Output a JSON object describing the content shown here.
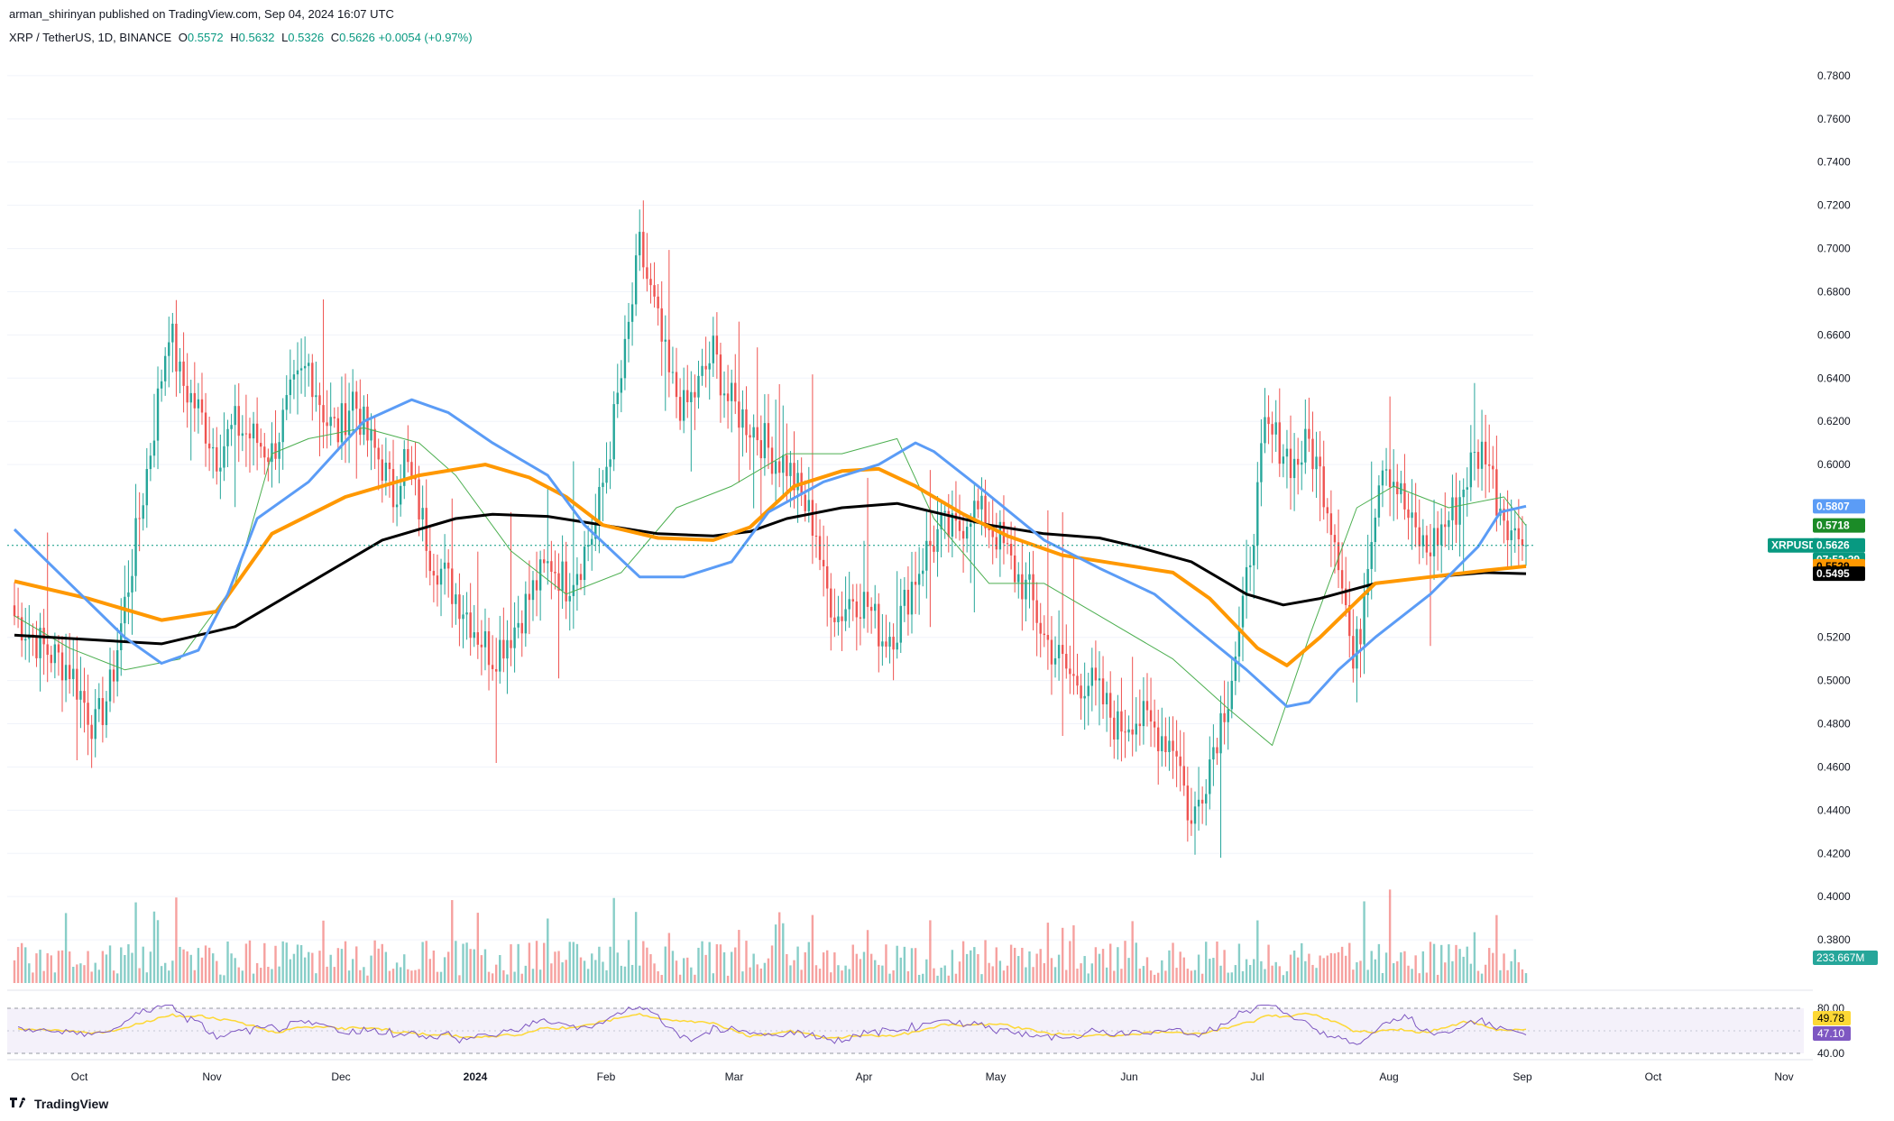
{
  "header": {
    "published_by": "arman_shirinyan published on TradingView.com, Sep 04, 2024 16:07 UTC"
  },
  "legend": {
    "symbol": "XRP / TetherUS, 1D, BINANCE",
    "open_label": "O",
    "open": "0.5572",
    "high_label": "H",
    "high": "0.5632",
    "low_label": "L",
    "low": "0.5326",
    "close_label": "C",
    "close": "0.5626",
    "change": "+0.0054 (+0.97%)"
  },
  "footer": {
    "brand": "TradingView"
  },
  "colors": {
    "up": "#26a69a",
    "down": "#ef5350",
    "ma_black": "#000000",
    "ma_orange": "#ff9800",
    "ma_blue": "#5b9cf6",
    "ma_green": "#4caf50",
    "rsi": "#7e57c2",
    "rsi_ma": "#fdd835",
    "rsi_band": "#ede7f6"
  },
  "chart_data": {
    "type": "candlestick",
    "title": "XRP / TetherUS, 1D, BINANCE",
    "price_axis": {
      "ticks": [
        "0.7800",
        "0.7600",
        "0.7400",
        "0.7200",
        "0.7000",
        "0.6800",
        "0.6600",
        "0.6400",
        "0.6200",
        "0.6000",
        "0.5200",
        "0.5000",
        "0.4800",
        "0.4600",
        "0.4400",
        "0.4200",
        "0.4000",
        "0.3800"
      ],
      "ylim": [
        0.36,
        0.795
      ]
    },
    "time_axis": {
      "labels": [
        "Oct",
        "Nov",
        "Dec",
        "2024",
        "Feb",
        "Mar",
        "Apr",
        "May",
        "Jun",
        "Jul",
        "Aug",
        "Sep",
        "Oct",
        "Nov"
      ]
    },
    "price_tags": [
      {
        "label": "0.5807",
        "value": 0.5807,
        "color": "#5b9cf6",
        "text_color": "#ffffff"
      },
      {
        "label": "0.5718",
        "value": 0.5718,
        "color": "#1b8b27",
        "text_color": "#ffffff"
      },
      {
        "label": "XRPUSDT",
        "value": 0.5626,
        "color": "#089981",
        "text_color": "#ffffff"
      },
      {
        "label": "0.5626",
        "value": 0.5626,
        "color": "#089981",
        "text_color": "#ffffff"
      },
      {
        "label": "07:52:29",
        "value": 0.5626,
        "color": "#089981",
        "text_color": "#ffffff"
      },
      {
        "label": "0.5529",
        "value": 0.5529,
        "color": "#ff9800",
        "text_color": "#000000"
      },
      {
        "label": "0.5495",
        "value": 0.5495,
        "color": "#000000",
        "text_color": "#ffffff"
      }
    ],
    "volume_tag": "233.667M",
    "rsi": {
      "axis_labels": [
        "80.00",
        "40.00"
      ],
      "values": [
        "49.78",
        "47.10"
      ],
      "value_colors": [
        "#fdd835",
        "#7e57c2"
      ]
    },
    "ohlc_path": [
      [
        0,
        0.53
      ],
      [
        8,
        0.515
      ],
      [
        15,
        0.506
      ],
      [
        22,
        0.478
      ],
      [
        26,
        0.496
      ],
      [
        32,
        0.555
      ],
      [
        38,
        0.618
      ],
      [
        42,
        0.665
      ],
      [
        45,
        0.64
      ],
      [
        50,
        0.625
      ],
      [
        55,
        0.605
      ],
      [
        60,
        0.618
      ],
      [
        66,
        0.611
      ],
      [
        70,
        0.605
      ],
      [
        75,
        0.63
      ],
      [
        80,
        0.646
      ],
      [
        85,
        0.62
      ],
      [
        88,
        0.615
      ],
      [
        92,
        0.632
      ],
      [
        96,
        0.612
      ],
      [
        100,
        0.6
      ],
      [
        103,
        0.585
      ],
      [
        106,
        0.603
      ],
      [
        110,
        0.58
      ],
      [
        113,
        0.56
      ],
      [
        118,
        0.545
      ],
      [
        122,
        0.535
      ],
      [
        126,
        0.522
      ],
      [
        130,
        0.512
      ],
      [
        136,
        0.525
      ],
      [
        142,
        0.545
      ],
      [
        146,
        0.555
      ],
      [
        150,
        0.545
      ],
      [
        154,
        0.556
      ],
      [
        158,
        0.572
      ],
      [
        162,
        0.61
      ],
      [
        166,
        0.65
      ],
      [
        170,
        0.7
      ],
      [
        174,
        0.672
      ],
      [
        178,
        0.64
      ],
      [
        182,
        0.625
      ],
      [
        186,
        0.636
      ],
      [
        190,
        0.652
      ],
      [
        194,
        0.63
      ],
      [
        198,
        0.622
      ],
      [
        202,
        0.615
      ],
      [
        206,
        0.605
      ],
      [
        210,
        0.6
      ],
      [
        214,
        0.584
      ],
      [
        218,
        0.57
      ],
      [
        220,
        0.545
      ],
      [
        224,
        0.53
      ],
      [
        228,
        0.54
      ],
      [
        232,
        0.535
      ],
      [
        236,
        0.52
      ],
      [
        240,
        0.525
      ],
      [
        244,
        0.545
      ],
      [
        248,
        0.56
      ],
      [
        252,
        0.57
      ],
      [
        256,
        0.568
      ],
      [
        260,
        0.58
      ],
      [
        264,
        0.575
      ],
      [
        268,
        0.565
      ],
      [
        272,
        0.55
      ],
      [
        276,
        0.54
      ],
      [
        280,
        0.52
      ],
      [
        284,
        0.51
      ],
      [
        288,
        0.5
      ],
      [
        292,
        0.5
      ],
      [
        296,
        0.49
      ],
      [
        300,
        0.478
      ],
      [
        304,
        0.484
      ],
      [
        308,
        0.48
      ],
      [
        312,
        0.475
      ],
      [
        316,
        0.47
      ],
      [
        318,
        0.45
      ],
      [
        320,
        0.432
      ],
      [
        322,
        0.445
      ],
      [
        326,
        0.47
      ],
      [
        330,
        0.495
      ],
      [
        334,
        0.53
      ],
      [
        336,
        0.56
      ],
      [
        338,
        0.585
      ],
      [
        340,
        0.615
      ],
      [
        344,
        0.61
      ],
      [
        348,
        0.6
      ],
      [
        352,
        0.61
      ],
      [
        356,
        0.59
      ],
      [
        358,
        0.575
      ],
      [
        360,
        0.56
      ],
      [
        362,
        0.535
      ],
      [
        364,
        0.505
      ],
      [
        366,
        0.525
      ],
      [
        368,
        0.56
      ],
      [
        372,
        0.605
      ],
      [
        376,
        0.59
      ],
      [
        380,
        0.57
      ],
      [
        384,
        0.56
      ],
      [
        388,
        0.57
      ],
      [
        392,
        0.58
      ],
      [
        396,
        0.6
      ],
      [
        400,
        0.608
      ],
      [
        403,
        0.585
      ],
      [
        406,
        0.575
      ],
      [
        408,
        0.566
      ],
      [
        410,
        0.572
      ],
      [
        411,
        0.5626
      ]
    ],
    "series": [
      {
        "name": "",
        "key": "ma_black",
        "points": [
          [
            0,
            0.521
          ],
          [
            20,
            0.519
          ],
          [
            40,
            0.517
          ],
          [
            60,
            0.525
          ],
          [
            80,
            0.545
          ],
          [
            100,
            0.565
          ],
          [
            120,
            0.575
          ],
          [
            130,
            0.577
          ],
          [
            145,
            0.576
          ],
          [
            160,
            0.572
          ],
          [
            175,
            0.568
          ],
          [
            190,
            0.567
          ],
          [
            200,
            0.569
          ],
          [
            210,
            0.575
          ],
          [
            225,
            0.58
          ],
          [
            240,
            0.582
          ],
          [
            250,
            0.578
          ],
          [
            265,
            0.572
          ],
          [
            280,
            0.568
          ],
          [
            295,
            0.566
          ],
          [
            305,
            0.562
          ],
          [
            320,
            0.555
          ],
          [
            335,
            0.54
          ],
          [
            345,
            0.535
          ],
          [
            355,
            0.538
          ],
          [
            370,
            0.545
          ],
          [
            385,
            0.548
          ],
          [
            400,
            0.55
          ],
          [
            411,
            0.5495
          ]
        ]
      },
      {
        "name": "",
        "key": "ma_orange",
        "points": [
          [
            0,
            0.546
          ],
          [
            20,
            0.538
          ],
          [
            40,
            0.528
          ],
          [
            55,
            0.532
          ],
          [
            70,
            0.568
          ],
          [
            90,
            0.585
          ],
          [
            110,
            0.595
          ],
          [
            128,
            0.6
          ],
          [
            140,
            0.594
          ],
          [
            150,
            0.585
          ],
          [
            160,
            0.572
          ],
          [
            175,
            0.566
          ],
          [
            190,
            0.565
          ],
          [
            200,
            0.571
          ],
          [
            212,
            0.59
          ],
          [
            225,
            0.597
          ],
          [
            235,
            0.598
          ],
          [
            245,
            0.59
          ],
          [
            258,
            0.577
          ],
          [
            270,
            0.567
          ],
          [
            285,
            0.558
          ],
          [
            300,
            0.554
          ],
          [
            315,
            0.55
          ],
          [
            325,
            0.538
          ],
          [
            338,
            0.515
          ],
          [
            346,
            0.507
          ],
          [
            355,
            0.52
          ],
          [
            370,
            0.545
          ],
          [
            385,
            0.548
          ],
          [
            400,
            0.551
          ],
          [
            411,
            0.5529
          ]
        ]
      },
      {
        "name": "",
        "key": "ma_blue",
        "points": [
          [
            0,
            0.57
          ],
          [
            15,
            0.545
          ],
          [
            30,
            0.52
          ],
          [
            40,
            0.508
          ],
          [
            50,
            0.514
          ],
          [
            58,
            0.54
          ],
          [
            66,
            0.575
          ],
          [
            80,
            0.592
          ],
          [
            95,
            0.62
          ],
          [
            108,
            0.63
          ],
          [
            118,
            0.624
          ],
          [
            130,
            0.61
          ],
          [
            145,
            0.595
          ],
          [
            155,
            0.572
          ],
          [
            170,
            0.548
          ],
          [
            182,
            0.548
          ],
          [
            195,
            0.555
          ],
          [
            205,
            0.578
          ],
          [
            220,
            0.592
          ],
          [
            235,
            0.6
          ],
          [
            245,
            0.61
          ],
          [
            250,
            0.606
          ],
          [
            262,
            0.59
          ],
          [
            280,
            0.565
          ],
          [
            295,
            0.552
          ],
          [
            310,
            0.54
          ],
          [
            322,
            0.523
          ],
          [
            335,
            0.505
          ],
          [
            346,
            0.488
          ],
          [
            352,
            0.49
          ],
          [
            360,
            0.505
          ],
          [
            370,
            0.52
          ],
          [
            385,
            0.54
          ],
          [
            398,
            0.562
          ],
          [
            404,
            0.578
          ],
          [
            411,
            0.5807
          ]
        ]
      },
      {
        "name": "",
        "key": "ma_green",
        "points": [
          [
            0,
            0.53
          ],
          [
            15,
            0.515
          ],
          [
            30,
            0.505
          ],
          [
            45,
            0.51
          ],
          [
            60,
            0.545
          ],
          [
            70,
            0.605
          ],
          [
            80,
            0.612
          ],
          [
            95,
            0.617
          ],
          [
            110,
            0.61
          ],
          [
            120,
            0.595
          ],
          [
            135,
            0.56
          ],
          [
            150,
            0.54
          ],
          [
            165,
            0.55
          ],
          [
            180,
            0.58
          ],
          [
            195,
            0.59
          ],
          [
            210,
            0.605
          ],
          [
            225,
            0.605
          ],
          [
            240,
            0.612
          ],
          [
            250,
            0.575
          ],
          [
            265,
            0.545
          ],
          [
            280,
            0.545
          ],
          [
            295,
            0.53
          ],
          [
            315,
            0.51
          ],
          [
            330,
            0.487
          ],
          [
            342,
            0.47
          ],
          [
            352,
            0.52
          ],
          [
            365,
            0.58
          ],
          [
            375,
            0.59
          ],
          [
            390,
            0.58
          ],
          [
            405,
            0.585
          ],
          [
            411,
            0.5718
          ]
        ]
      }
    ]
  }
}
